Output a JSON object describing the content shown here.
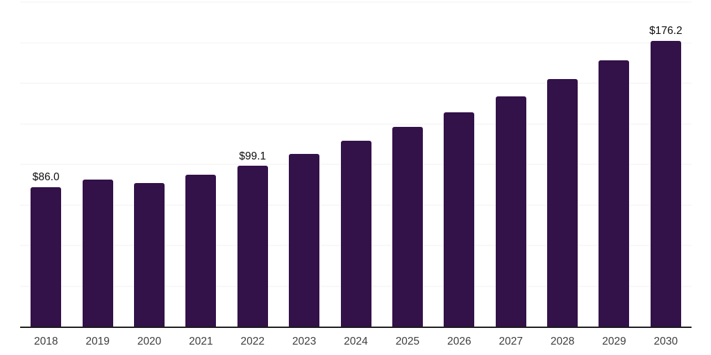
{
  "chart_data": {
    "type": "bar",
    "title": "",
    "xlabel": "",
    "ylabel": "",
    "categories": [
      "2018",
      "2019",
      "2020",
      "2021",
      "2022",
      "2023",
      "2024",
      "2025",
      "2026",
      "2027",
      "2028",
      "2029",
      "2030"
    ],
    "values": [
      86.0,
      90.7,
      88.6,
      93.4,
      99.1,
      106.5,
      114.4,
      122.9,
      132.1,
      141.9,
      152.5,
      163.9,
      176.2
    ],
    "data_labels": [
      "$86.0",
      "",
      "",
      "",
      "$99.1",
      "",
      "",
      "",
      "",
      "",
      "",
      "",
      "$176.2"
    ],
    "ylim": [
      0,
      200
    ],
    "grid_step": 25,
    "grid": true,
    "y_tick_labels_visible": false,
    "legend_position": "none",
    "colors": {
      "bar": "#331149",
      "gridline": "#f0f0f0",
      "axis_line": "#1c1c1c",
      "data_label": "#0d0d0d",
      "tick_label": "#3d3d3d",
      "background": "#ffffff"
    }
  }
}
